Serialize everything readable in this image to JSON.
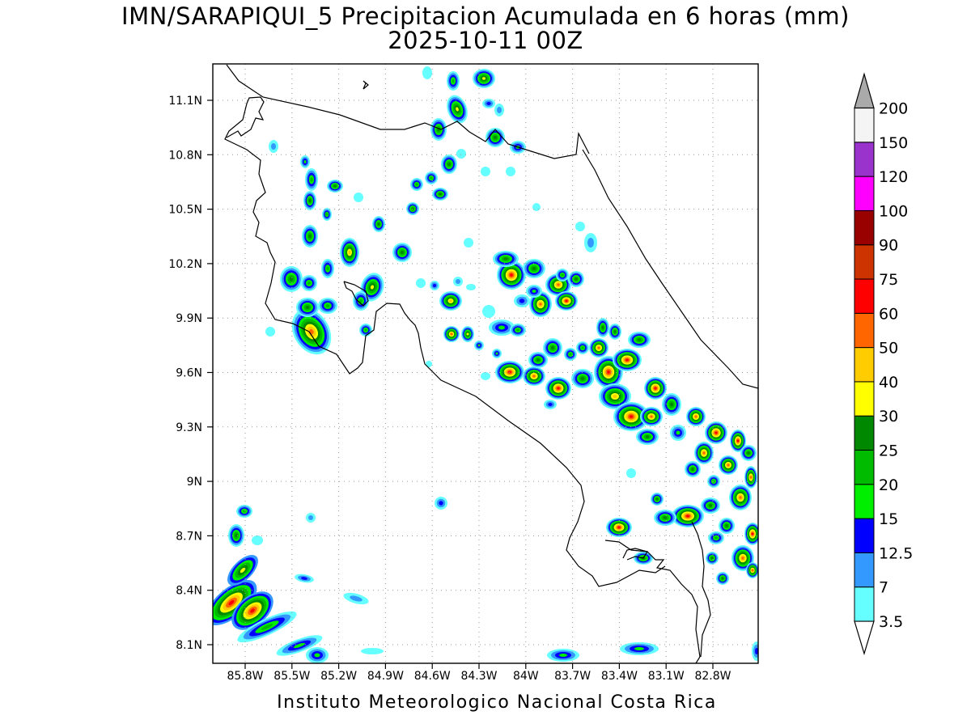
{
  "title": {
    "line1": "IMN/SARAPIQUI_5 Precipitacion Acumulada en 6 horas (mm)",
    "line2": "2025-10-11 00Z"
  },
  "footer": "Instituto Meteorologico Nacional Costa Rica",
  "axes": {
    "lat_labels": [
      "11.1N",
      "10.8N",
      "10.5N",
      "10.2N",
      "9.9N",
      "9.6N",
      "9.3N",
      "9N",
      "8.7N",
      "8.4N",
      "8.1N"
    ],
    "lon_labels": [
      "85.8W",
      "85.5W",
      "85.2W",
      "84.9W",
      "84.6W",
      "84.3W",
      "84W",
      "83.7W",
      "83.4W",
      "83.1W",
      "82.8W"
    ]
  },
  "colorbar": {
    "labels": [
      "3.5",
      "7",
      "12.5",
      "15",
      "20",
      "25",
      "30",
      "40",
      "50",
      "60",
      "75",
      "90",
      "100",
      "120",
      "150",
      "200"
    ],
    "colors": [
      "#66ffff",
      "#3399ff",
      "#0000ff",
      "#00ee00",
      "#00bb00",
      "#008800",
      "#ffff00",
      "#ffcc00",
      "#ff6600",
      "#ff0000",
      "#cc3300",
      "#990000",
      "#ff00ff",
      "#9933cc",
      "#f4f4f4",
      "#aaaaaa"
    ]
  },
  "palette": {
    "c1": "#66ffff",
    "c2": "#3399ff",
    "c3": "#0000ff",
    "c4": "#00ee00",
    "c5": "#00bb00",
    "c6": "#008800",
    "c7": "#ffff00",
    "c8": "#ffcc00",
    "c9": "#ff6600",
    "c10": "#ff0000"
  },
  "cells": [
    [
      286,
      745,
      38,
      18,
      -40,
      2,
      10
    ],
    [
      312,
      755,
      30,
      18,
      -40,
      2,
      10
    ],
    [
      300,
      705,
      24,
      12,
      -45,
      2,
      7
    ],
    [
      330,
      775,
      40,
      10,
      -25,
      1,
      5
    ],
    [
      370,
      798,
      30,
      8,
      -20,
      1,
      4
    ],
    [
      292,
      662,
      10,
      14,
      0,
      1,
      6
    ],
    [
      302,
      632,
      10,
      8,
      0,
      1,
      5
    ],
    [
      318,
      668,
      7,
      6,
      0,
      1,
      1
    ],
    [
      384,
      640,
      6,
      6,
      0,
      1,
      2
    ],
    [
      376,
      715,
      12,
      5,
      10,
      1,
      3
    ],
    [
      440,
      740,
      16,
      6,
      15,
      1,
      2
    ],
    [
      460,
      805,
      14,
      4,
      0,
      1,
      1
    ],
    [
      392,
      810,
      14,
      10,
      0,
      1,
      4
    ],
    [
      545,
      622,
      8,
      8,
      0,
      1,
      3
    ],
    [
      696,
      810,
      20,
      8,
      0,
      1,
      4
    ],
    [
      790,
      802,
      24,
      8,
      0,
      1,
      4
    ],
    [
      935,
      805,
      6,
      12,
      0,
      1,
      3
    ],
    [
      385,
      410,
      22,
      30,
      -30,
      1,
      9
    ],
    [
      380,
      380,
      14,
      12,
      0,
      1,
      6
    ],
    [
      405,
      378,
      12,
      10,
      0,
      1,
      5
    ],
    [
      360,
      345,
      14,
      16,
      0,
      1,
      6
    ],
    [
      382,
      350,
      10,
      10,
      0,
      1,
      5
    ],
    [
      405,
      332,
      8,
      12,
      0,
      1,
      5
    ],
    [
      432,
      312,
      12,
      18,
      0,
      1,
      8
    ],
    [
      383,
      292,
      10,
      14,
      0,
      1,
      6
    ],
    [
      404,
      265,
      6,
      8,
      0,
      1,
      5
    ],
    [
      383,
      248,
      8,
      12,
      0,
      1,
      6
    ],
    [
      385,
      222,
      8,
      14,
      0,
      1,
      5
    ],
    [
      377,
      200,
      6,
      8,
      0,
      1,
      4
    ],
    [
      414,
      230,
      10,
      8,
      0,
      1,
      6
    ],
    [
      460,
      355,
      14,
      18,
      20,
      1,
      7
    ],
    [
      446,
      372,
      10,
      12,
      0,
      1,
      5
    ],
    [
      468,
      277,
      8,
      10,
      0,
      1,
      6
    ],
    [
      497,
      312,
      12,
      12,
      0,
      1,
      6
    ],
    [
      452,
      408,
      8,
      8,
      0,
      1,
      5
    ],
    [
      338,
      181,
      6,
      8,
      0,
      1,
      2
    ],
    [
      334,
      410,
      6,
      6,
      0,
      1,
      1
    ],
    [
      443,
      244,
      6,
      6,
      0,
      1,
      1
    ],
    [
      510,
      258,
      8,
      8,
      0,
      1,
      6
    ],
    [
      544,
      240,
      10,
      8,
      0,
      1,
      6
    ],
    [
      515,
      228,
      8,
      8,
      0,
      1,
      5
    ],
    [
      533,
      220,
      8,
      8,
      0,
      1,
      5
    ],
    [
      555,
      203,
      10,
      12,
      0,
      1,
      6
    ],
    [
      542,
      160,
      10,
      14,
      0,
      1,
      6
    ],
    [
      565,
      135,
      12,
      18,
      -20,
      1,
      7
    ],
    [
      598,
      97,
      14,
      12,
      0,
      1,
      7
    ],
    [
      560,
      100,
      8,
      12,
      0,
      1,
      5
    ],
    [
      612,
      170,
      12,
      12,
      0,
      1,
      6
    ],
    [
      640,
      182,
      10,
      8,
      0,
      1,
      4
    ],
    [
      604,
      128,
      8,
      6,
      0,
      1,
      3
    ],
    [
      617,
      136,
      6,
      8,
      0,
      1,
      2
    ],
    [
      528,
      90,
      6,
      8,
      0,
      1,
      1
    ],
    [
      570,
      190,
      6,
      6,
      0,
      1,
      1
    ],
    [
      600,
      212,
      6,
      6,
      0,
      1,
      1
    ],
    [
      631,
      212,
      6,
      6,
      0,
      1,
      1
    ],
    [
      663,
      256,
      5,
      5,
      0,
      1,
      1
    ],
    [
      717,
      280,
      6,
      6,
      0,
      1,
      1
    ],
    [
      730,
      300,
      8,
      12,
      0,
      1,
      2
    ],
    [
      579,
      300,
      6,
      6,
      0,
      1,
      1
    ],
    [
      557,
      372,
      14,
      12,
      0,
      1,
      8
    ],
    [
      537,
      353,
      6,
      6,
      0,
      1,
      3
    ],
    [
      566,
      348,
      6,
      6,
      0,
      1,
      2
    ],
    [
      558,
      413,
      10,
      10,
      0,
      1,
      9
    ],
    [
      578,
      413,
      8,
      10,
      0,
      1,
      7
    ],
    [
      592,
      427,
      6,
      6,
      0,
      1,
      4
    ],
    [
      614,
      437,
      6,
      6,
      0,
      1,
      4
    ],
    [
      604,
      385,
      8,
      8,
      0,
      1,
      1
    ],
    [
      600,
      465,
      6,
      5,
      0,
      1,
      1
    ],
    [
      530,
      450,
      4,
      4,
      0,
      1,
      1
    ],
    [
      520,
      350,
      6,
      6,
      0,
      1,
      1
    ],
    [
      582,
      355,
      6,
      4,
      0,
      1,
      1
    ],
    [
      620,
      405,
      16,
      10,
      0,
      1,
      4
    ],
    [
      640,
      408,
      10,
      8,
      0,
      1,
      5
    ],
    [
      632,
      340,
      18,
      18,
      0,
      1,
      10
    ],
    [
      660,
      332,
      14,
      12,
      0,
      1,
      6
    ],
    [
      625,
      320,
      16,
      10,
      0,
      1,
      6
    ],
    [
      690,
      352,
      16,
      14,
      0,
      1,
      9
    ],
    [
      700,
      372,
      14,
      12,
      0,
      1,
      10
    ],
    [
      668,
      376,
      14,
      16,
      0,
      1,
      9
    ],
    [
      712,
      345,
      10,
      10,
      0,
      1,
      6
    ],
    [
      645,
      372,
      10,
      8,
      0,
      1,
      3
    ],
    [
      695,
      340,
      8,
      8,
      0,
      1,
      5
    ],
    [
      660,
      360,
      10,
      8,
      0,
      1,
      4
    ],
    [
      630,
      460,
      18,
      14,
      0,
      1,
      10
    ],
    [
      660,
      465,
      14,
      12,
      0,
      1,
      9
    ],
    [
      690,
      480,
      16,
      14,
      0,
      1,
      10
    ],
    [
      720,
      468,
      14,
      12,
      0,
      1,
      6
    ],
    [
      665,
      445,
      12,
      10,
      0,
      1,
      6
    ],
    [
      683,
      430,
      12,
      12,
      0,
      1,
      6
    ],
    [
      705,
      438,
      8,
      8,
      0,
      1,
      5
    ],
    [
      680,
      500,
      8,
      6,
      0,
      1,
      3
    ],
    [
      752,
      460,
      18,
      20,
      0,
      1,
      10
    ],
    [
      775,
      445,
      18,
      14,
      0,
      1,
      10
    ],
    [
      740,
      430,
      12,
      12,
      0,
      1,
      9
    ],
    [
      745,
      405,
      8,
      12,
      0,
      1,
      6
    ],
    [
      760,
      410,
      8,
      10,
      0,
      1,
      6
    ],
    [
      790,
      420,
      14,
      10,
      0,
      1,
      6
    ],
    [
      720,
      430,
      8,
      8,
      0,
      1,
      5
    ],
    [
      760,
      490,
      20,
      16,
      0,
      1,
      8
    ],
    [
      780,
      515,
      22,
      18,
      0,
      1,
      10
    ],
    [
      810,
      480,
      14,
      14,
      0,
      1,
      10
    ],
    [
      805,
      515,
      14,
      12,
      0,
      1,
      9
    ],
    [
      830,
      500,
      12,
      14,
      0,
      1,
      6
    ],
    [
      800,
      540,
      14,
      10,
      0,
      1,
      6
    ],
    [
      838,
      535,
      10,
      10,
      0,
      1,
      4
    ],
    [
      860,
      515,
      12,
      12,
      0,
      1,
      9
    ],
    [
      885,
      535,
      14,
      14,
      0,
      1,
      10
    ],
    [
      912,
      545,
      10,
      14,
      0,
      1,
      10
    ],
    [
      870,
      560,
      12,
      14,
      0,
      1,
      9
    ],
    [
      900,
      575,
      12,
      12,
      0,
      1,
      9
    ],
    [
      925,
      560,
      10,
      10,
      0,
      1,
      6
    ],
    [
      856,
      580,
      10,
      10,
      0,
      1,
      6
    ],
    [
      882,
      595,
      8,
      8,
      0,
      1,
      5
    ],
    [
      915,
      615,
      14,
      16,
      0,
      1,
      9
    ],
    [
      928,
      590,
      8,
      14,
      0,
      1,
      9
    ],
    [
      930,
      660,
      10,
      14,
      0,
      1,
      10
    ],
    [
      918,
      690,
      14,
      16,
      0,
      1,
      9
    ],
    [
      930,
      705,
      8,
      10,
      0,
      1,
      9
    ],
    [
      898,
      650,
      10,
      10,
      0,
      1,
      6
    ],
    [
      850,
      638,
      20,
      14,
      0,
      1,
      10
    ],
    [
      878,
      625,
      12,
      10,
      0,
      1,
      6
    ],
    [
      822,
      640,
      14,
      10,
      0,
      1,
      6
    ],
    [
      812,
      617,
      8,
      8,
      0,
      1,
      6
    ],
    [
      885,
      665,
      10,
      8,
      0,
      1,
      5
    ],
    [
      880,
      690,
      8,
      8,
      0,
      1,
      6
    ],
    [
      893,
      715,
      8,
      8,
      0,
      1,
      6
    ],
    [
      765,
      652,
      16,
      12,
      0,
      1,
      10
    ],
    [
      795,
      690,
      12,
      8,
      0,
      1,
      6
    ],
    [
      780,
      585,
      6,
      6,
      0,
      1,
      1
    ]
  ]
}
